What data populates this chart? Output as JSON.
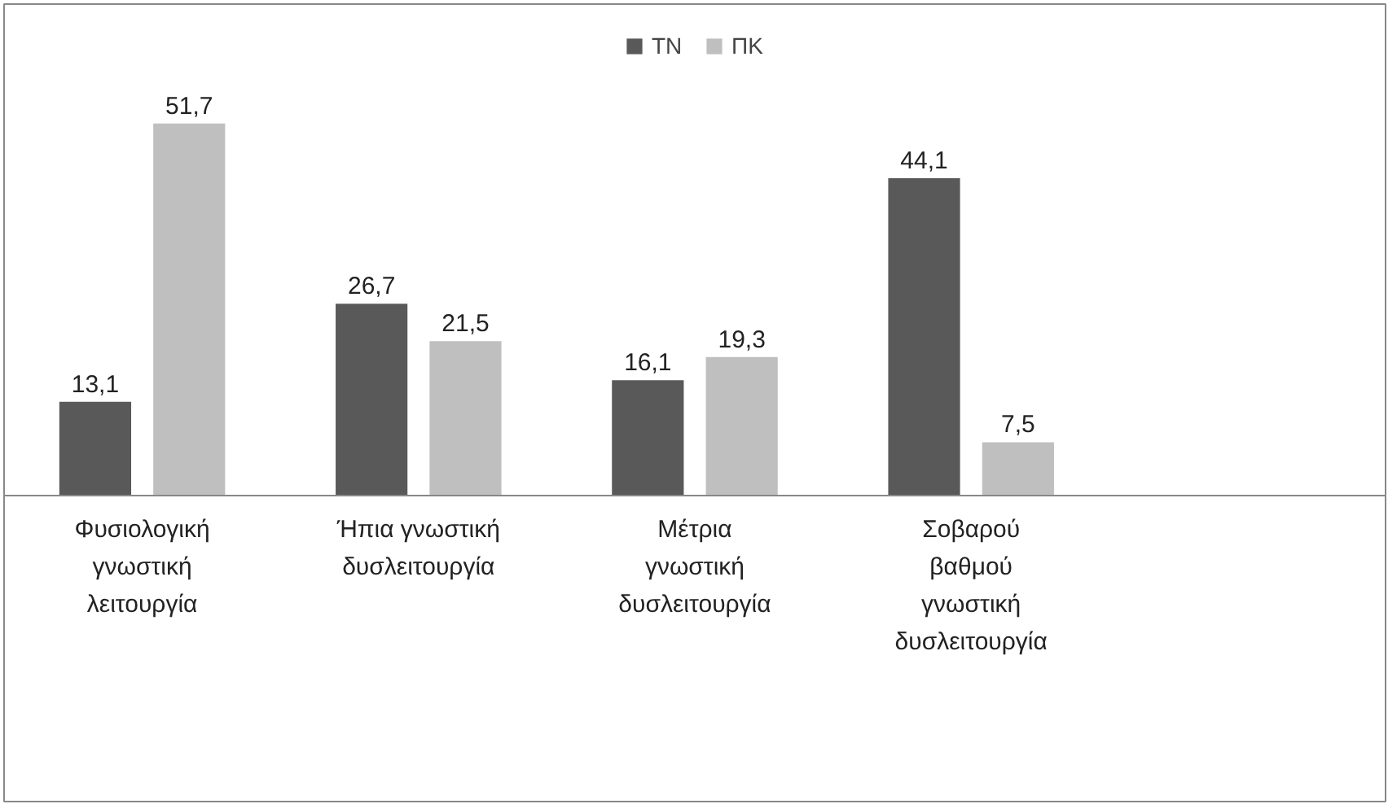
{
  "chart_data": {
    "type": "bar",
    "categories": [
      "Φυσιολογική\nγνωστική\nλειτουργία",
      "Ήπια γνωστική\nδυσλειτουργία",
      "Μέτρια\nγνωστική\nδυσλειτουργία",
      "Σοβαρού\nβαθμού\nγνωστική\nδυσλειτουργία",
      null
    ],
    "series": [
      {
        "name": "ΤΝ",
        "color": "#595959",
        "values": [
          13.1,
          26.7,
          16.1,
          44.1,
          null
        ],
        "value_labels": [
          "13,1",
          "26,7",
          "16,1",
          "44,1",
          null
        ]
      },
      {
        "name": "ΠΚ",
        "color": "#bfbfbf",
        "values": [
          51.7,
          21.5,
          19.3,
          7.5,
          null
        ],
        "value_labels": [
          "51,7",
          "21,5",
          "19,3",
          "7,5",
          null
        ]
      }
    ],
    "legend": "top",
    "grid": false
  }
}
